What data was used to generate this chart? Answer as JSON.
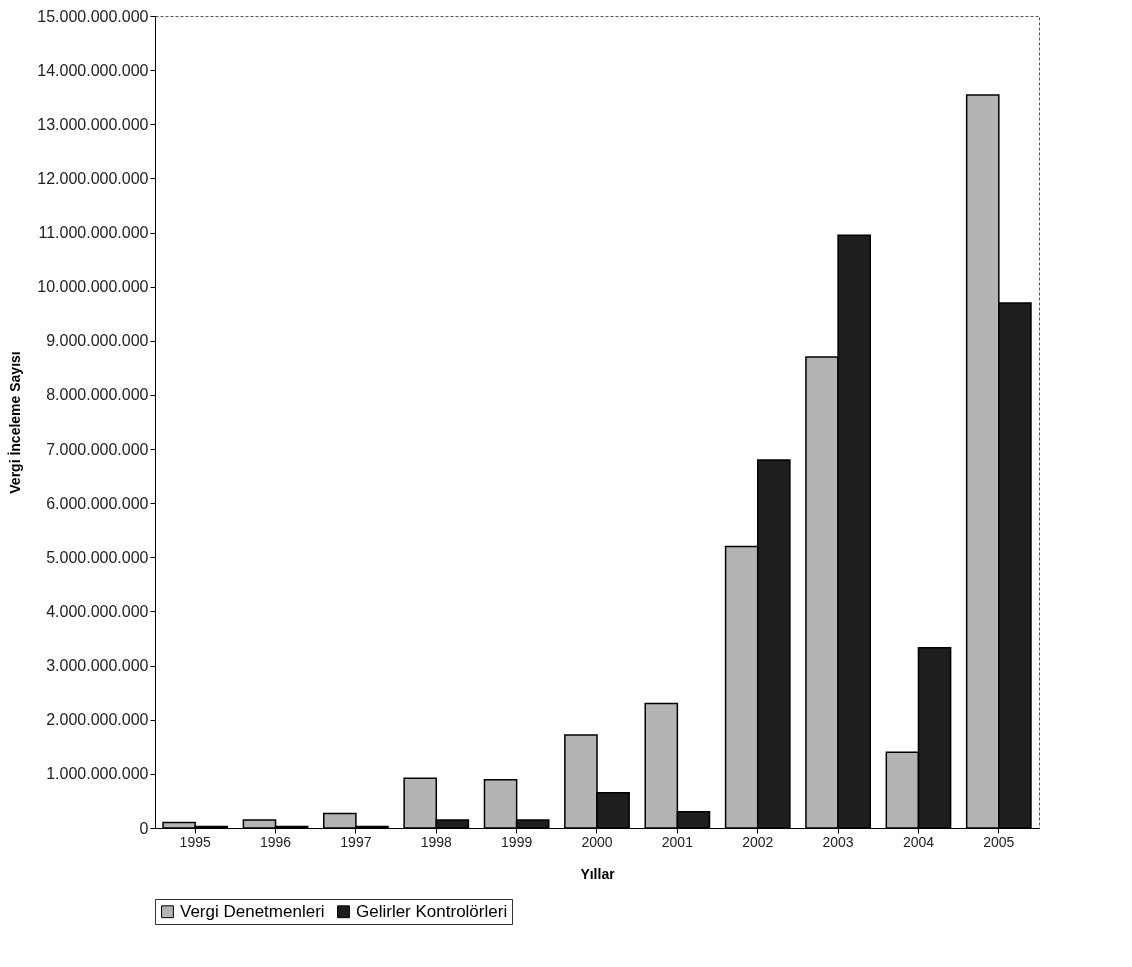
{
  "chart_data": {
    "type": "bar",
    "xlabel": "Yıllar",
    "ylabel": "Vergi İnceleme Sayısı",
    "categories": [
      "1995",
      "1996",
      "1997",
      "1998",
      "1999",
      "2000",
      "2001",
      "2002",
      "2003",
      "2004",
      "2005"
    ],
    "series": [
      {
        "name": "Vergi Denetmenleri",
        "color": "#b4b4b4",
        "values": [
          100000000,
          150000000,
          270000000,
          920000000,
          890000000,
          1720000000,
          2300000000,
          5200000000,
          8700000000,
          1400000000,
          13540000000
        ]
      },
      {
        "name": "Gelirler Kontrolörleri",
        "color": "#1e1e1e",
        "values": [
          30000000,
          30000000,
          30000000,
          150000000,
          150000000,
          650000000,
          300000000,
          6800000000,
          10950000000,
          3330000000,
          9700000000
        ]
      }
    ],
    "ylim": [
      0,
      15000000000
    ],
    "yticks": [
      {
        "value": 0,
        "label": "0"
      },
      {
        "value": 1000000000,
        "label": "1.000.000.000"
      },
      {
        "value": 2000000000,
        "label": "2.000.000.000"
      },
      {
        "value": 3000000000,
        "label": "3.000.000.000"
      },
      {
        "value": 4000000000,
        "label": "4.000.000.000"
      },
      {
        "value": 5000000000,
        "label": "5.000.000.000"
      },
      {
        "value": 6000000000,
        "label": "6.000.000.000"
      },
      {
        "value": 7000000000,
        "label": "7.000.000.000"
      },
      {
        "value": 8000000000,
        "label": "8.000.000.000"
      },
      {
        "value": 9000000000,
        "label": "9.000.000.000"
      },
      {
        "value": 10000000000,
        "label": "10.000.000.000"
      },
      {
        "value": 11000000000,
        "label": "11.000.000.000"
      },
      {
        "value": 12000000000,
        "label": "12.000.000.000"
      },
      {
        "value": 13000000000,
        "label": "13.000.000.000"
      },
      {
        "value": 14000000000,
        "label": "14.000.000.000"
      },
      {
        "value": 15000000000,
        "label": "15.000.000.000"
      }
    ],
    "grid": false,
    "legend": "bottom"
  }
}
